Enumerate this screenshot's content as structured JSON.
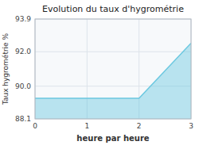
{
  "chart_data": {
    "type": "area",
    "title": "Evolution du taux d'hygrométrie",
    "xlabel": "heure par heure",
    "ylabel": "Taux hygrométrie %",
    "x": [
      0,
      2,
      3
    ],
    "values": [
      89.3,
      89.3,
      92.5
    ],
    "xlim": [
      0,
      3
    ],
    "ylim": [
      88.1,
      93.9
    ],
    "xticks": [
      0,
      1,
      2,
      3
    ],
    "yticks": [
      88.1,
      {
        "value": 90,
        "label": "90.0"
      },
      {
        "value": 92,
        "label": "92.0"
      },
      93.9
    ],
    "color": "#6bc8e0",
    "grid": true
  }
}
